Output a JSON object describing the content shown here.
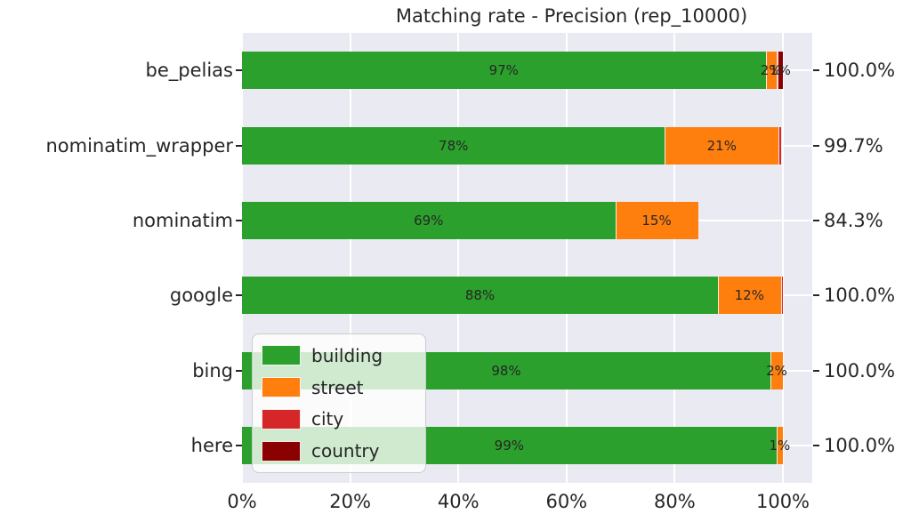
{
  "chart_data": {
    "type": "bar",
    "orientation": "horizontal",
    "stacked": true,
    "title": "Matching rate - Precision (rep_10000)",
    "grid": true,
    "x_range": [
      0,
      100
    ],
    "x_tick_values": [
      0,
      20,
      40,
      60,
      80,
      100
    ],
    "x_tick_labels": [
      "0%",
      "20%",
      "40%",
      "60%",
      "80%",
      "100%"
    ],
    "legend": {
      "position": "lower-left-inside",
      "entries": [
        "building",
        "street",
        "city",
        "country"
      ]
    },
    "series_names": [
      "building",
      "street",
      "city",
      "country"
    ],
    "rows": [
      {
        "category": "be_pelias",
        "total_label": "100.0%",
        "segments": [
          {
            "name": "building",
            "value": 96.8,
            "label": "97%"
          },
          {
            "name": "street",
            "value": 2.0,
            "label": "2%"
          },
          {
            "name": "city",
            "value": 0.2,
            "label": ""
          },
          {
            "name": "country",
            "value": 1.0,
            "label": "1%"
          }
        ]
      },
      {
        "category": "nominatim_wrapper",
        "total_label": "99.7%",
        "segments": [
          {
            "name": "building",
            "value": 78.2,
            "label": "78%"
          },
          {
            "name": "street",
            "value": 21.0,
            "label": "21%"
          },
          {
            "name": "city",
            "value": 0.5,
            "label": ""
          }
        ]
      },
      {
        "category": "nominatim",
        "total_label": "84.3%",
        "segments": [
          {
            "name": "building",
            "value": 69.0,
            "label": "69%"
          },
          {
            "name": "street",
            "value": 15.3,
            "label": "15%"
          }
        ]
      },
      {
        "category": "google",
        "total_label": "100.0%",
        "segments": [
          {
            "name": "building",
            "value": 88.0,
            "label": "88%"
          },
          {
            "name": "street",
            "value": 11.6,
            "label": "12%"
          },
          {
            "name": "city",
            "value": 0.4,
            "label": ""
          }
        ]
      },
      {
        "category": "bing",
        "total_label": "100.0%",
        "segments": [
          {
            "name": "building",
            "value": 97.7,
            "label": "98%"
          },
          {
            "name": "street",
            "value": 2.3,
            "label": "2%"
          }
        ]
      },
      {
        "category": "here",
        "total_label": "100.0%",
        "segments": [
          {
            "name": "building",
            "value": 98.8,
            "label": "99%"
          },
          {
            "name": "street",
            "value": 1.2,
            "label": "1%"
          }
        ]
      }
    ]
  },
  "colors": {
    "plot_background": "#eaeaf2",
    "gridline": "#ffffff",
    "text": "#262626",
    "series": {
      "building": "#2ca02c",
      "street": "#ff7f0e",
      "city": "#d62728",
      "country": "#8b0000"
    }
  }
}
